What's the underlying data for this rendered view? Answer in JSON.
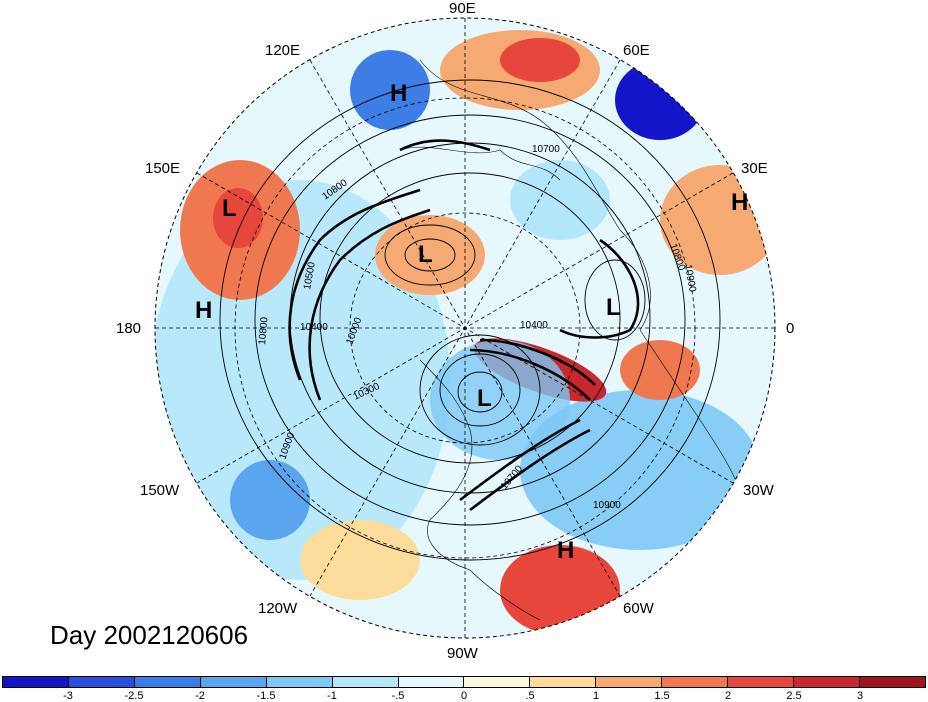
{
  "title": "Day 2002120606",
  "longitude_labels": {
    "lon_90e": "90E",
    "lon_120e": "120E",
    "lon_60e": "60E",
    "lon_150e": "150E",
    "lon_30e": "30E",
    "lon_180": "180",
    "lon_0": "0",
    "lon_150w": "150W",
    "lon_30w": "30W",
    "lon_120w": "120W",
    "lon_60w": "60W",
    "lon_90w": "90W"
  },
  "pressure_markers": [
    {
      "label": "H",
      "name": "high-north-asia"
    },
    {
      "label": "L",
      "name": "low-west-pacific"
    },
    {
      "label": "H",
      "name": "high-europe-east"
    },
    {
      "label": "L",
      "name": "low-siberia"
    },
    {
      "label": "H",
      "name": "high-pacific"
    },
    {
      "label": "L",
      "name": "low-europe"
    },
    {
      "label": "L",
      "name": "low-canada"
    },
    {
      "label": "H",
      "name": "high-south-america"
    }
  ],
  "contour_labels": [
    "10700",
    "10800",
    "10500",
    "10400",
    "10000",
    "10300",
    "10400",
    "10800",
    "10900",
    "10900",
    "10700",
    "10900",
    "10800"
  ],
  "colorbar": {
    "ticks": [
      "-3",
      "-2.5",
      "-2",
      "-1.5",
      "-1",
      "-.5",
      "0",
      ".5",
      "1",
      "1.5",
      "2",
      "2.5",
      "3"
    ],
    "colors": [
      "#1414c8",
      "#2850dc",
      "#3c7de6",
      "#5aa5ee",
      "#7dc8f5",
      "#b4e6fa",
      "#e6f8fc",
      "#fcf8dc",
      "#fcdc9b",
      "#f5aa73",
      "#f07850",
      "#e6463c",
      "#c8282d",
      "#a0141e"
    ]
  }
}
